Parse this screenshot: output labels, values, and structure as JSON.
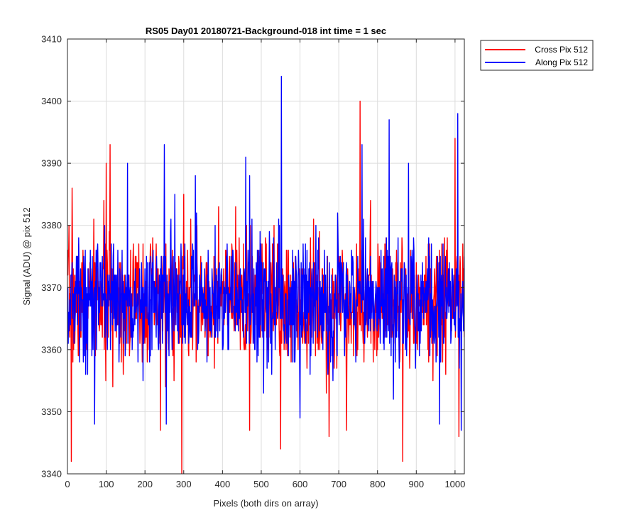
{
  "chart_data": {
    "type": "line",
    "title": "RS05 Day01 20180721-Background-018 int time = 1 sec",
    "xlabel": "Pixels (both dirs on array)",
    "ylabel": "Signal (ADU) @ pix 512",
    "xlim": [
      0,
      1024
    ],
    "ylim": [
      3340,
      3410
    ],
    "xticks": [
      0,
      100,
      200,
      300,
      400,
      500,
      600,
      700,
      800,
      900,
      1000
    ],
    "yticks": [
      3340,
      3350,
      3360,
      3370,
      3380,
      3390,
      3400,
      3410
    ],
    "grid": true,
    "legend_position": "outside-top-right",
    "series": [
      {
        "name": "Cross Pix 512",
        "color": "#ff0000",
        "mean": 3368,
        "spread": 4,
        "seed": 7,
        "points": [
          [
            10,
            3342
          ],
          [
            12,
            3386
          ],
          [
            110,
            3393
          ],
          [
            100,
            3390
          ],
          [
            295,
            3340
          ],
          [
            300,
            3385
          ],
          [
            550,
            3344
          ],
          [
            755,
            3400
          ],
          [
            865,
            3342
          ],
          [
            1000,
            3394
          ],
          [
            1010,
            3346
          ],
          [
            1020,
            3377
          ],
          [
            240,
            3347
          ],
          [
            470,
            3347
          ],
          [
            675,
            3346
          ],
          [
            720,
            3347
          ]
        ]
      },
      {
        "name": "Along Pix 512",
        "color": "#0000ff",
        "mean": 3368,
        "spread": 4,
        "seed": 13,
        "points": [
          [
            552,
            3404
          ],
          [
            1007,
            3398
          ],
          [
            830,
            3397
          ],
          [
            250,
            3393
          ],
          [
            155,
            3390
          ],
          [
            460,
            3391
          ],
          [
            760,
            3393
          ],
          [
            1016,
            3347
          ],
          [
            70,
            3348
          ],
          [
            255,
            3348
          ],
          [
            600,
            3349
          ],
          [
            960,
            3348
          ],
          [
            880,
            3390
          ],
          [
            470,
            3388
          ],
          [
            330,
            3388
          ]
        ]
      }
    ]
  }
}
